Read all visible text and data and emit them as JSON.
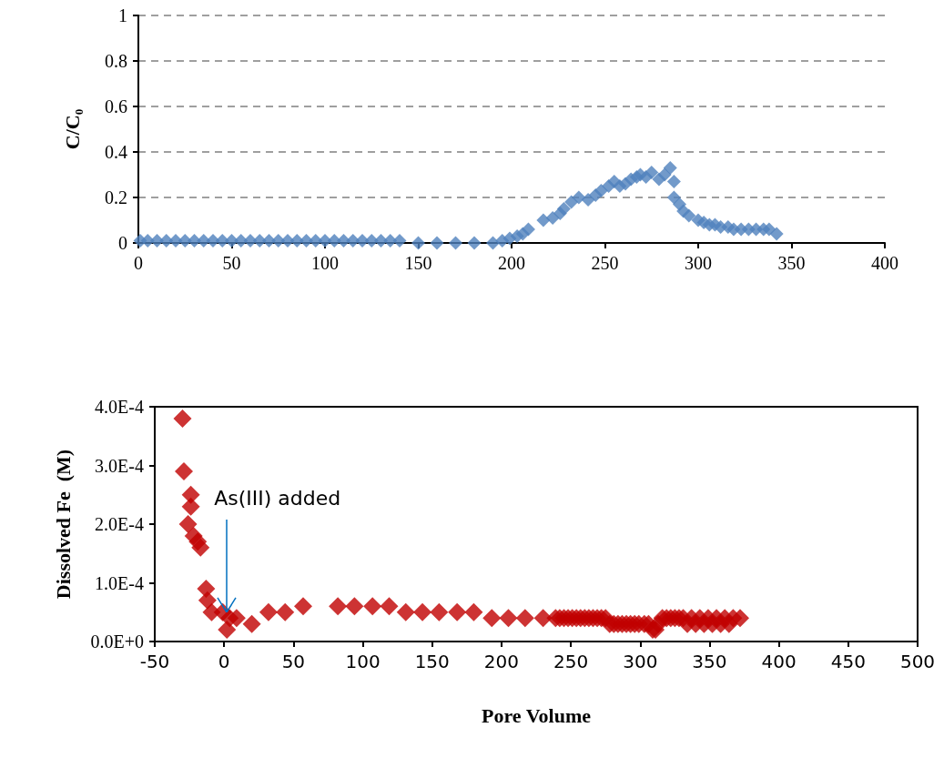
{
  "chart_data": [
    {
      "type": "scatter",
      "ylabel": "C/C₀",
      "color": "#4f81bd",
      "marker": "diamond",
      "grid": "y",
      "x": [
        1,
        5,
        10,
        15,
        20,
        25,
        30,
        35,
        40,
        45,
        50,
        55,
        60,
        65,
        70,
        75,
        80,
        85,
        90,
        95,
        100,
        105,
        110,
        115,
        120,
        125,
        130,
        135,
        140,
        150,
        160,
        170,
        180,
        190,
        195,
        199,
        203,
        206,
        209,
        217,
        222,
        226,
        228,
        232,
        236,
        241,
        245,
        248,
        252,
        255,
        258,
        261,
        264,
        267,
        269,
        272,
        275,
        279,
        282,
        285,
        287,
        287,
        290,
        292,
        295,
        300,
        303,
        306,
        309,
        312,
        316,
        319,
        323,
        327,
        331,
        335,
        338,
        342
      ],
      "values": [
        0.01,
        0.01,
        0.01,
        0.01,
        0.01,
        0.01,
        0.01,
        0.01,
        0.01,
        0.01,
        0.01,
        0.01,
        0.01,
        0.01,
        0.01,
        0.01,
        0.01,
        0.01,
        0.01,
        0.01,
        0.01,
        0.01,
        0.01,
        0.01,
        0.01,
        0.01,
        0.01,
        0.01,
        0.01,
        0,
        0,
        0,
        0,
        0,
        0.01,
        0.02,
        0.03,
        0.04,
        0.06,
        0.1,
        0.11,
        0.13,
        0.15,
        0.18,
        0.2,
        0.19,
        0.21,
        0.23,
        0.25,
        0.27,
        0.25,
        0.26,
        0.28,
        0.29,
        0.3,
        0.29,
        0.31,
        0.28,
        0.3,
        0.33,
        0.27,
        0.2,
        0.17,
        0.14,
        0.12,
        0.1,
        0.09,
        0.08,
        0.08,
        0.07,
        0.07,
        0.06,
        0.06,
        0.06,
        0.06,
        0.06,
        0.06,
        0.04
      ],
      "xlim": [
        0,
        400
      ],
      "xticks": [
        0,
        50,
        100,
        150,
        200,
        250,
        300,
        350,
        400
      ],
      "ylim": [
        0,
        1
      ],
      "yticks": [
        0,
        0.2,
        0.4,
        0.6,
        0.8,
        1
      ]
    },
    {
      "type": "scatter",
      "xlabel": "Pore Volume",
      "ylabel": "Dissolved Fe  (M)",
      "color": "#c00000",
      "marker": "diamond",
      "grid": false,
      "annotations": [
        {
          "text": "As(III) added",
          "x": 2,
          "y": 5e-05
        }
      ],
      "x": [
        -30,
        -29,
        -24,
        -24,
        -26,
        -22,
        -19,
        -17,
        -13,
        -12,
        -9,
        -1,
        2,
        4,
        9,
        20,
        32,
        44,
        57,
        82,
        94,
        107,
        119,
        131,
        143,
        155,
        168,
        180,
        193,
        205,
        217,
        230,
        239,
        242,
        245,
        248,
        251,
        254,
        257,
        260,
        263,
        266,
        269,
        272,
        275,
        278,
        281,
        284,
        287,
        290,
        293,
        296,
        299,
        303,
        306,
        309,
        311,
        313,
        316,
        319,
        322,
        325,
        328,
        331,
        334,
        337,
        340,
        343,
        346,
        349,
        352,
        355,
        358,
        361,
        364,
        367,
        372
      ],
      "values": [
        0.00038,
        0.00029,
        0.00025,
        0.00023,
        0.0002,
        0.00018,
        0.00017,
        0.00016,
        9e-05,
        7e-05,
        5e-05,
        5e-05,
        2e-05,
        4e-05,
        4e-05,
        3e-05,
        5e-05,
        5e-05,
        6e-05,
        6e-05,
        6e-05,
        6e-05,
        6e-05,
        5e-05,
        5e-05,
        5e-05,
        5e-05,
        5e-05,
        4e-05,
        4e-05,
        4e-05,
        4e-05,
        4e-05,
        4e-05,
        4e-05,
        4e-05,
        4e-05,
        4e-05,
        4e-05,
        4e-05,
        4e-05,
        4e-05,
        4e-05,
        4e-05,
        4e-05,
        3e-05,
        3e-05,
        3e-05,
        3e-05,
        3e-05,
        3e-05,
        3e-05,
        3e-05,
        3e-05,
        3e-05,
        2e-05,
        2e-05,
        3e-05,
        4e-05,
        4e-05,
        4e-05,
        4e-05,
        4e-05,
        4e-05,
        3e-05,
        4e-05,
        3e-05,
        4e-05,
        3e-05,
        4e-05,
        3e-05,
        4e-05,
        3e-05,
        4e-05,
        3e-05,
        4e-05,
        4e-05
      ],
      "xlim": [
        -50,
        500
      ],
      "xticks": [
        -50,
        0,
        50,
        100,
        150,
        200,
        250,
        300,
        350,
        400,
        450,
        500
      ],
      "ylim": [
        0,
        0.0004
      ],
      "yticks": [
        {
          "value": 0,
          "label": "0.0E+0"
        },
        {
          "value": 0.0001,
          "label": "1.0E-4"
        },
        {
          "value": 0.0002,
          "label": "2.0E-4"
        },
        {
          "value": 0.0003,
          "label": "3.0E-4"
        },
        {
          "value": 0.0004,
          "label": "4.0E-4"
        }
      ]
    }
  ]
}
